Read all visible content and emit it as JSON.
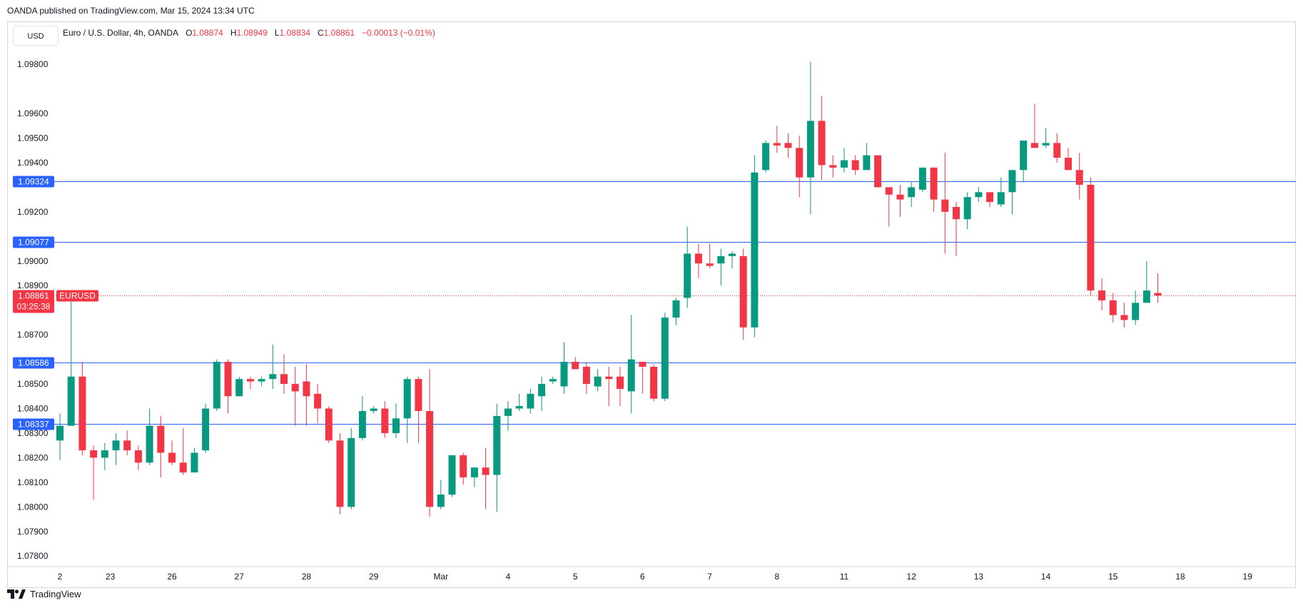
{
  "header": {
    "publisher": "OANDA published on TradingView.com, Mar 15, 2024 13:34 UTC",
    "currency": "USD",
    "symbol_desc": "Euro / U.S. Dollar, 4h, OANDA",
    "o_label": "O",
    "o_value": "1.08874",
    "h_label": "H",
    "h_value": "1.08949",
    "l_label": "L",
    "l_value": "1.08834",
    "c_label": "C",
    "c_value": "1.08861",
    "change": "−0.00013 (−0.01%)"
  },
  "footer": {
    "brand": "TradingView"
  },
  "colors": {
    "up": "#089981",
    "down": "#f23645",
    "hline": "#2962ff",
    "grid_text": "#131722"
  },
  "chart_data": {
    "type": "candlestick",
    "symbol": "EURUSD",
    "timeframe": "4h",
    "ylim": [
      1.0776,
      1.0987
    ],
    "y_ticks": [
      "1.07800",
      "1.07900",
      "1.08000",
      "1.08100",
      "1.08200",
      "1.08300",
      "1.08400",
      "1.08500",
      "1.08700",
      "1.08900",
      "1.09000",
      "1.09200",
      "1.09400",
      "1.09500",
      "1.09600",
      "1.09800"
    ],
    "x_ticks": [
      "2",
      "23",
      "26",
      "27",
      "28",
      "29",
      "Mar",
      "4",
      "5",
      "6",
      "7",
      "8",
      "11",
      "12",
      "13",
      "14",
      "15",
      "18",
      "19"
    ],
    "horizontal_levels": [
      "1.09324",
      "1.09077",
      "1.08586",
      "1.08337"
    ],
    "last_price": {
      "value": "1.08861",
      "label": "EURUSD",
      "countdown": "03:25:38"
    },
    "candles": [
      {
        "o": 1.0827,
        "h": 1.0838,
        "l": 1.0819,
        "c": 1.0833
      },
      {
        "o": 1.0833,
        "h": 1.0888,
        "l": 1.0833,
        "c": 1.0853
      },
      {
        "o": 1.0853,
        "h": 1.0859,
        "l": 1.0821,
        "c": 1.0823
      },
      {
        "o": 1.0823,
        "h": 1.0825,
        "l": 1.0803,
        "c": 1.082
      },
      {
        "o": 1.082,
        "h": 1.0826,
        "l": 1.0815,
        "c": 1.0823
      },
      {
        "o": 1.0823,
        "h": 1.083,
        "l": 1.0817,
        "c": 1.0827
      },
      {
        "o": 1.0827,
        "h": 1.0831,
        "l": 1.0821,
        "c": 1.0823
      },
      {
        "o": 1.0823,
        "h": 1.0825,
        "l": 1.0815,
        "c": 1.0818
      },
      {
        "o": 1.0818,
        "h": 1.084,
        "l": 1.0817,
        "c": 1.0833
      },
      {
        "o": 1.0833,
        "h": 1.0837,
        "l": 1.0812,
        "c": 1.0822
      },
      {
        "o": 1.0822,
        "h": 1.0827,
        "l": 1.0817,
        "c": 1.0818
      },
      {
        "o": 1.0818,
        "h": 1.0832,
        "l": 1.0813,
        "c": 1.0814
      },
      {
        "o": 1.0814,
        "h": 1.0824,
        "l": 1.0814,
        "c": 1.0822
      },
      {
        "o": 1.0823,
        "h": 1.0842,
        "l": 1.0822,
        "c": 1.084
      },
      {
        "o": 1.084,
        "h": 1.086,
        "l": 1.0839,
        "c": 1.0859
      },
      {
        "o": 1.0859,
        "h": 1.086,
        "l": 1.0838,
        "c": 1.0845
      },
      {
        "o": 1.0845,
        "h": 1.0853,
        "l": 1.0845,
        "c": 1.0852
      },
      {
        "o": 1.0852,
        "h": 1.0853,
        "l": 1.0848,
        "c": 1.0851
      },
      {
        "o": 1.0851,
        "h": 1.0853,
        "l": 1.0849,
        "c": 1.0852
      },
      {
        "o": 1.0852,
        "h": 1.0866,
        "l": 1.0848,
        "c": 1.0854
      },
      {
        "o": 1.0854,
        "h": 1.0862,
        "l": 1.0846,
        "c": 1.085
      },
      {
        "o": 1.085,
        "h": 1.0857,
        "l": 1.0833,
        "c": 1.0847
      },
      {
        "o": 1.0851,
        "h": 1.0858,
        "l": 1.0833,
        "c": 1.0845
      },
      {
        "o": 1.0846,
        "h": 1.085,
        "l": 1.0834,
        "c": 1.084
      },
      {
        "o": 1.084,
        "h": 1.0841,
        "l": 1.0826,
        "c": 1.0827
      },
      {
        "o": 1.0827,
        "h": 1.083,
        "l": 1.0797,
        "c": 1.08
      },
      {
        "o": 1.08,
        "h": 1.0832,
        "l": 1.0799,
        "c": 1.0828
      },
      {
        "o": 1.0828,
        "h": 1.0845,
        "l": 1.0827,
        "c": 1.0839
      },
      {
        "o": 1.0839,
        "h": 1.0841,
        "l": 1.0838,
        "c": 1.084
      },
      {
        "o": 1.084,
        "h": 1.0843,
        "l": 1.0828,
        "c": 1.083
      },
      {
        "o": 1.083,
        "h": 1.0842,
        "l": 1.0828,
        "c": 1.0836
      },
      {
        "o": 1.0836,
        "h": 1.0853,
        "l": 1.0826,
        "c": 1.0852
      },
      {
        "o": 1.0852,
        "h": 1.0853,
        "l": 1.0826,
        "c": 1.0839
      },
      {
        "o": 1.0839,
        "h": 1.0856,
        "l": 1.0796,
        "c": 1.08
      },
      {
        "o": 1.08,
        "h": 1.0811,
        "l": 1.0799,
        "c": 1.0805
      },
      {
        "o": 1.0805,
        "h": 1.0821,
        "l": 1.0804,
        "c": 1.0821
      },
      {
        "o": 1.0821,
        "h": 1.0822,
        "l": 1.0809,
        "c": 1.0812
      },
      {
        "o": 1.0812,
        "h": 1.0816,
        "l": 1.0808,
        "c": 1.0816
      },
      {
        "o": 1.0816,
        "h": 1.0824,
        "l": 1.0799,
        "c": 1.0813
      },
      {
        "o": 1.0813,
        "h": 1.0842,
        "l": 1.0798,
        "c": 1.0837
      },
      {
        "o": 1.0837,
        "h": 1.0843,
        "l": 1.0831,
        "c": 1.084
      },
      {
        "o": 1.084,
        "h": 1.0846,
        "l": 1.0839,
        "c": 1.0841
      },
      {
        "o": 1.084,
        "h": 1.0848,
        "l": 1.0838,
        "c": 1.0846
      },
      {
        "o": 1.0845,
        "h": 1.0853,
        "l": 1.0839,
        "c": 1.085
      },
      {
        "o": 1.0851,
        "h": 1.0853,
        "l": 1.085,
        "c": 1.0852
      },
      {
        "o": 1.0849,
        "h": 1.0867,
        "l": 1.0846,
        "c": 1.0859
      },
      {
        "o": 1.0859,
        "h": 1.0861,
        "l": 1.0856,
        "c": 1.0856
      },
      {
        "o": 1.0857,
        "h": 1.0859,
        "l": 1.0846,
        "c": 1.085
      },
      {
        "o": 1.0849,
        "h": 1.0856,
        "l": 1.0847,
        "c": 1.0853
      },
      {
        "o": 1.0853,
        "h": 1.0857,
        "l": 1.0841,
        "c": 1.0852
      },
      {
        "o": 1.0853,
        "h": 1.0857,
        "l": 1.0841,
        "c": 1.0848
      },
      {
        "o": 1.0847,
        "h": 1.0878,
        "l": 1.0838,
        "c": 1.086
      },
      {
        "o": 1.0859,
        "h": 1.0858,
        "l": 1.0846,
        "c": 1.0857
      },
      {
        "o": 1.0857,
        "h": 1.0858,
        "l": 1.0843,
        "c": 1.0844
      },
      {
        "o": 1.0844,
        "h": 1.0879,
        "l": 1.0843,
        "c": 1.0877
      },
      {
        "o": 1.0877,
        "h": 1.0885,
        "l": 1.0874,
        "c": 1.0884
      },
      {
        "o": 1.0885,
        "h": 1.0914,
        "l": 1.0881,
        "c": 1.0903
      },
      {
        "o": 1.0903,
        "h": 1.0907,
        "l": 1.0893,
        "c": 1.0899
      },
      {
        "o": 1.0899,
        "h": 1.0907,
        "l": 1.0897,
        "c": 1.0898
      },
      {
        "o": 1.0899,
        "h": 1.0905,
        "l": 1.089,
        "c": 1.0902
      },
      {
        "o": 1.0902,
        "h": 1.0904,
        "l": 1.0897,
        "c": 1.0903
      },
      {
        "o": 1.0902,
        "h": 1.0905,
        "l": 1.0868,
        "c": 1.0873
      },
      {
        "o": 1.0873,
        "h": 1.0943,
        "l": 1.0869,
        "c": 1.0936
      },
      {
        "o": 1.0937,
        "h": 1.0949,
        "l": 1.0936,
        "c": 1.0948
      },
      {
        "o": 1.0948,
        "h": 1.0955,
        "l": 1.0944,
        "c": 1.0947
      },
      {
        "o": 1.0948,
        "h": 1.0952,
        "l": 1.0942,
        "c": 1.0946
      },
      {
        "o": 1.0946,
        "h": 1.0951,
        "l": 1.0926,
        "c": 1.0934
      },
      {
        "o": 1.0934,
        "h": 1.0981,
        "l": 1.0919,
        "c": 1.0957
      },
      {
        "o": 1.0957,
        "h": 1.0967,
        "l": 1.0933,
        "c": 1.0939
      },
      {
        "o": 1.0939,
        "h": 1.0943,
        "l": 1.0934,
        "c": 1.0938
      },
      {
        "o": 1.0938,
        "h": 1.0946,
        "l": 1.0936,
        "c": 1.0941
      },
      {
        "o": 1.0941,
        "h": 1.0943,
        "l": 1.0935,
        "c": 1.0937
      },
      {
        "o": 1.0937,
        "h": 1.0948,
        "l": 1.0937,
        "c": 1.0943
      },
      {
        "o": 1.0943,
        "h": 1.0943,
        "l": 1.093,
        "c": 1.093
      },
      {
        "o": 1.093,
        "h": 1.093,
        "l": 1.0914,
        "c": 1.0927
      },
      {
        "o": 1.0927,
        "h": 1.0931,
        "l": 1.0918,
        "c": 1.0925
      },
      {
        "o": 1.0926,
        "h": 1.0932,
        "l": 1.0922,
        "c": 1.093
      },
      {
        "o": 1.0929,
        "h": 1.0938,
        "l": 1.0928,
        "c": 1.0938
      },
      {
        "o": 1.0938,
        "h": 1.0938,
        "l": 1.092,
        "c": 1.0925
      },
      {
        "o": 1.0925,
        "h": 1.0944,
        "l": 1.0903,
        "c": 1.092
      },
      {
        "o": 1.0922,
        "h": 1.0924,
        "l": 1.0902,
        "c": 1.0917
      },
      {
        "o": 1.0917,
        "h": 1.0928,
        "l": 1.0913,
        "c": 1.0926
      },
      {
        "o": 1.0926,
        "h": 1.093,
        "l": 1.0924,
        "c": 1.0928
      },
      {
        "o": 1.0928,
        "h": 1.0926,
        "l": 1.0922,
        "c": 1.0924
      },
      {
        "o": 1.0923,
        "h": 1.0934,
        "l": 1.0922,
        "c": 1.0928
      },
      {
        "o": 1.0928,
        "h": 1.0936,
        "l": 1.0919,
        "c": 1.0937
      },
      {
        "o": 1.0937,
        "h": 1.0949,
        "l": 1.0932,
        "c": 1.0949
      },
      {
        "o": 1.0948,
        "h": 1.0964,
        "l": 1.0946,
        "c": 1.0946
      },
      {
        "o": 1.0947,
        "h": 1.0954,
        "l": 1.0946,
        "c": 1.0948
      },
      {
        "o": 1.0948,
        "h": 1.0952,
        "l": 1.094,
        "c": 1.0942
      },
      {
        "o": 1.0942,
        "h": 1.0946,
        "l": 1.0937,
        "c": 1.0937
      },
      {
        "o": 1.0937,
        "h": 1.0944,
        "l": 1.0925,
        "c": 1.0931
      },
      {
        "o": 1.0931,
        "h": 1.0934,
        "l": 1.0886,
        "c": 1.0888
      },
      {
        "o": 1.0888,
        "h": 1.0893,
        "l": 1.088,
        "c": 1.0884
      },
      {
        "o": 1.0884,
        "h": 1.0887,
        "l": 1.0875,
        "c": 1.0878
      },
      {
        "o": 1.0878,
        "h": 1.0883,
        "l": 1.0873,
        "c": 1.0876
      },
      {
        "o": 1.0876,
        "h": 1.0888,
        "l": 1.0874,
        "c": 1.0883
      },
      {
        "o": 1.0883,
        "h": 1.09,
        "l": 1.0883,
        "c": 1.0888
      },
      {
        "o": 1.0887,
        "h": 1.0895,
        "l": 1.0883,
        "c": 1.0886
      }
    ]
  }
}
